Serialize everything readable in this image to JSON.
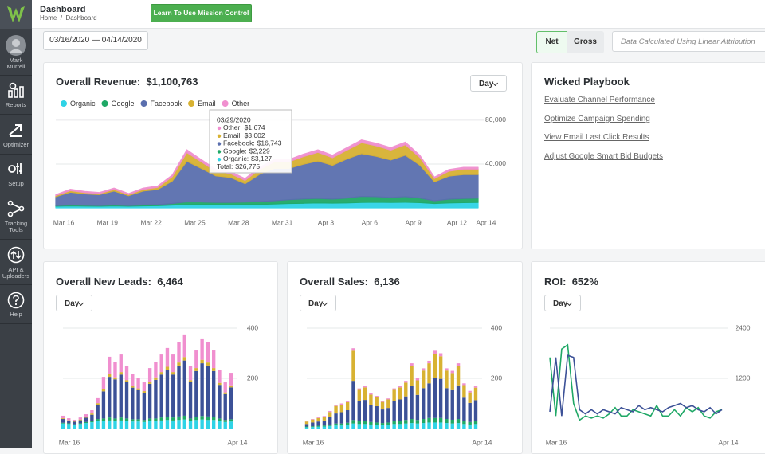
{
  "header": {
    "title": "Dashboard",
    "breadcrumb": [
      "Home",
      "Dashboard"
    ],
    "button": "Learn To Use Mission Control"
  },
  "sidebar": {
    "user": "Mark Murrell",
    "items": [
      "Reports",
      "Optimizer",
      "Setup",
      "Tracking Tools",
      "API & Uploaders",
      "Help"
    ]
  },
  "toolbar": {
    "date_range": "03/16/2020 — 04/14/2020",
    "toggle": [
      "Net",
      "Gross"
    ],
    "attribution": "Data Calculated Using Linear Attribution"
  },
  "playbook": {
    "title": "Wicked Playbook",
    "links": [
      "Evaluate Channel Performance",
      "Optimize Campaign Spending",
      "View Email Last Click Results",
      "Adjust Google Smart Bid Budgets"
    ]
  },
  "chart_data": [
    {
      "type": "area",
      "stacked": true,
      "title": "Overall Revenue:",
      "summary": "$1,100,763",
      "period": "Day",
      "legend": "top-left",
      "grid": true,
      "categories": [
        "Mar 16",
        null,
        null,
        "Mar 19",
        null,
        null,
        "Mar 22",
        null,
        null,
        "Mar 25",
        null,
        null,
        "Mar 28",
        null,
        null,
        "Mar 31",
        null,
        null,
        "Apr 3",
        null,
        null,
        "Apr 6",
        null,
        null,
        "Apr 9",
        null,
        null,
        "Apr 12",
        null,
        "Apr 14"
      ],
      "ylim": [
        0,
        85000
      ],
      "yticks": [
        {
          "value": 40000,
          "label": "40,000"
        },
        {
          "value": 80000,
          "label": "80,000"
        }
      ],
      "series": [
        {
          "name": "Organic",
          "color": "#2fd3e6",
          "values": [
            1500,
            1800,
            1600,
            1500,
            1800,
            1500,
            1800,
            2000,
            2500,
            3000,
            3200,
            3000,
            2900,
            3127,
            3200,
            3500,
            4000,
            4200,
            4500,
            4300,
            4500,
            5000,
            5200,
            5000,
            5200,
            4800,
            4000,
            4500,
            4800,
            5000
          ]
        },
        {
          "name": "Google",
          "color": "#1fa866",
          "values": [
            500,
            800,
            700,
            600,
            800,
            600,
            800,
            900,
            1500,
            2500,
            2200,
            2000,
            2100,
            2229,
            2500,
            3000,
            3500,
            4000,
            4200,
            3800,
            4500,
            5500,
            5000,
            4500,
            5000,
            4200,
            2500,
            3500,
            3800,
            4000
          ]
        },
        {
          "name": "Facebook",
          "color": "#5a6fae",
          "values": [
            8200,
            11700,
            10500,
            10000,
            12800,
            9000,
            12800,
            13900,
            20500,
            37000,
            30600,
            24200,
            22800,
            16743,
            25000,
            29500,
            28500,
            31600,
            34000,
            30700,
            35700,
            39000,
            36900,
            34200,
            37900,
            30000,
            17300,
            21000,
            21800,
            21400
          ]
        },
        {
          "name": "Email",
          "color": "#d8b232",
          "values": [
            1000,
            1500,
            1200,
            1000,
            1500,
            1000,
            1500,
            2000,
            4000,
            8000,
            6000,
            4000,
            3500,
            3002,
            4500,
            6000,
            6000,
            7000,
            8000,
            7000,
            8000,
            10000,
            9500,
            9000,
            9500,
            7000,
            3000,
            4500,
            5000,
            5000
          ]
        },
        {
          "name": "Other",
          "color": "#f08fcf",
          "values": [
            800,
            1200,
            1000,
            900,
            1100,
            900,
            1100,
            1200,
            1500,
            2500,
            2000,
            1800,
            1700,
            1674,
            1800,
            2000,
            2000,
            2200,
            2300,
            2200,
            2300,
            2500,
            2400,
            2300,
            2400,
            2000,
            1200,
            1500,
            1600,
            1600
          ]
        }
      ],
      "tooltip": {
        "date": "03/29/2020",
        "rows": [
          {
            "label": "Other:",
            "value": "$1,674"
          },
          {
            "label": "Email:",
            "value": "$3,002"
          },
          {
            "label": "Facebook:",
            "value": "$16,743"
          },
          {
            "label": "Google:",
            "value": "$2,229"
          },
          {
            "label": "Organic:",
            "value": "$3,127"
          },
          {
            "label": "Total:",
            "value": "$26,775"
          }
        ]
      }
    },
    {
      "type": "bar",
      "stacked": true,
      "title": "Overall New Leads:",
      "summary": "6,464",
      "period": "Day",
      "grid": true,
      "categories": [
        "Mar 16",
        null,
        null,
        null,
        null,
        null,
        null,
        null,
        null,
        null,
        null,
        null,
        null,
        null,
        null,
        null,
        null,
        null,
        null,
        null,
        null,
        null,
        null,
        null,
        null,
        null,
        null,
        null,
        null,
        "Apr 14"
      ],
      "ylim": [
        0,
        400
      ],
      "yticks": [
        200,
        400
      ],
      "series": [
        {
          "color": "#2fd3e6",
          "values": [
            20,
            18,
            15,
            18,
            22,
            25,
            30,
            30,
            32,
            30,
            32,
            30,
            28,
            28,
            26,
            30,
            30,
            32,
            34,
            32,
            34,
            36,
            30,
            34,
            36,
            34,
            34,
            30,
            26,
            28
          ]
        },
        {
          "color": "#1fa866",
          "values": [
            3,
            3,
            2,
            3,
            4,
            5,
            8,
            10,
            12,
            10,
            12,
            10,
            9,
            9,
            8,
            10,
            10,
            12,
            12,
            12,
            14,
            15,
            10,
            12,
            14,
            14,
            12,
            10,
            8,
            9
          ]
        },
        {
          "color": "#3c5197",
          "values": [
            15,
            9,
            10,
            12,
            17,
            25,
            57,
            108,
            162,
            156,
            171,
            145,
            126,
            116,
            108,
            138,
            154,
            171,
            188,
            171,
            203,
            220,
            145,
            183,
            210,
            203,
            183,
            134,
            103,
            127
          ]
        },
        {
          "color": "#d8b232",
          "values": [
            3,
            3,
            2,
            3,
            4,
            5,
            6,
            8,
            10,
            8,
            10,
            8,
            8,
            7,
            7,
            8,
            10,
            10,
            12,
            10,
            12,
            14,
            8,
            12,
            14,
            12,
            12,
            8,
            7,
            8
          ]
        },
        {
          "color": "#f08fcf",
          "values": [
            10,
            8,
            6,
            8,
            10,
            13,
            20,
            50,
            70,
            60,
            70,
            55,
            45,
            40,
            35,
            55,
            60,
            70,
            75,
            70,
            80,
            90,
            55,
            70,
            85,
            80,
            70,
            50,
            40,
            50
          ]
        }
      ]
    },
    {
      "type": "bar",
      "stacked": true,
      "title": "Overall Sales:",
      "summary": "6,136",
      "period": "Day",
      "grid": true,
      "categories": [
        "Mar 16",
        null,
        null,
        null,
        null,
        null,
        null,
        null,
        null,
        null,
        null,
        null,
        null,
        null,
        null,
        null,
        null,
        null,
        null,
        null,
        null,
        null,
        null,
        null,
        null,
        null,
        null,
        null,
        null,
        "Apr 14"
      ],
      "ylim": [
        0,
        400
      ],
      "yticks": [
        200,
        400
      ],
      "series": [
        {
          "color": "#2fd3e6",
          "values": [
            5,
            6,
            7,
            8,
            10,
            12,
            12,
            14,
            20,
            18,
            18,
            16,
            15,
            14,
            15,
            18,
            18,
            20,
            22,
            20,
            22,
            24,
            24,
            24,
            22,
            20,
            22,
            18,
            16,
            18
          ]
        },
        {
          "color": "#1fa866",
          "values": [
            3,
            3,
            4,
            4,
            6,
            8,
            8,
            9,
            14,
            12,
            12,
            10,
            9,
            8,
            9,
            12,
            12,
            14,
            16,
            14,
            16,
            18,
            18,
            18,
            16,
            15,
            16,
            12,
            10,
            12
          ]
        },
        {
          "color": "#3c5197",
          "values": [
            10,
            15,
            17,
            20,
            30,
            40,
            45,
            50,
            156,
            79,
            84,
            69,
            65,
            54,
            58,
            79,
            86,
            94,
            132,
            100,
            123,
            138,
            161,
            156,
            123,
            118,
            134,
            93,
            76,
            83
          ]
        },
        {
          "color": "#d8b232",
          "values": [
            10,
            12,
            14,
            15,
            20,
            30,
            30,
            32,
            120,
            45,
            50,
            40,
            36,
            30,
            34,
            45,
            48,
            55,
            80,
            58,
            70,
            80,
            95,
            90,
            70,
            68,
            78,
            50,
            42,
            50
          ]
        },
        {
          "color": "#f08fcf",
          "values": [
            2,
            2,
            3,
            3,
            4,
            5,
            5,
            5,
            10,
            6,
            6,
            5,
            5,
            4,
            4,
            6,
            6,
            7,
            10,
            8,
            9,
            10,
            12,
            12,
            9,
            9,
            10,
            7,
            6,
            7
          ]
        }
      ]
    },
    {
      "type": "line",
      "title": "ROI:",
      "summary": "652%",
      "period": "Day",
      "grid": true,
      "categories": [
        "Mar 16",
        null,
        null,
        null,
        null,
        null,
        null,
        null,
        null,
        null,
        null,
        null,
        null,
        null,
        null,
        null,
        null,
        null,
        null,
        null,
        null,
        null,
        null,
        null,
        null,
        null,
        null,
        null,
        null,
        "Apr 14"
      ],
      "ylim": [
        0,
        2400
      ],
      "yticks": [
        1200,
        2400
      ],
      "series": [
        {
          "color": "#1fa866",
          "values": [
            1700,
            300,
            1900,
            2000,
            600,
            200,
            300,
            250,
            300,
            250,
            350,
            500,
            300,
            300,
            450,
            400,
            350,
            300,
            550,
            300,
            300,
            450,
            300,
            500,
            400,
            500,
            300,
            250,
            400,
            450
          ]
        },
        {
          "color": "#3c5197",
          "values": [
            400,
            1700,
            300,
            1750,
            1700,
            450,
            350,
            450,
            350,
            450,
            400,
            350,
            500,
            450,
            400,
            550,
            450,
            500,
            450,
            400,
            500,
            550,
            600,
            500,
            550,
            450,
            400,
            500,
            350,
            450
          ]
        }
      ]
    }
  ]
}
